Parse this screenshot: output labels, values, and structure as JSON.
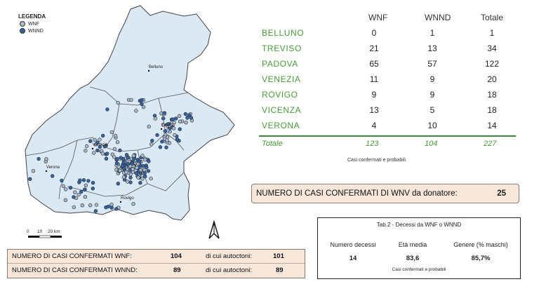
{
  "legend": {
    "title": "LEGENDA",
    "items": [
      {
        "label": "WNF",
        "color": "#a9b8cf"
      },
      {
        "label": "WNND",
        "color": "#2f64a6"
      }
    ]
  },
  "map": {
    "region_fill": "#dbe9f5",
    "cities": [
      "Belluno",
      "Treviso",
      "Venezia",
      "Verona",
      "Rovigo"
    ],
    "scale": {
      "zero": "0",
      "ten": "10",
      "twenty": "20 km"
    }
  },
  "table": {
    "headers": [
      "WNF",
      "WNND",
      "Totale"
    ],
    "rows": [
      {
        "prov": "BELLUNO",
        "wnf": "0",
        "wnnd": "1",
        "tot": "1"
      },
      {
        "prov": "TREVISO",
        "wnf": "21",
        "wnnd": "13",
        "tot": "34"
      },
      {
        "prov": "PADOVA",
        "wnf": "65",
        "wnnd": "57",
        "tot": "122"
      },
      {
        "prov": "VENEZIA",
        "wnf": "11",
        "wnnd": "9",
        "tot": "20"
      },
      {
        "prov": "ROVIGO",
        "wnf": "9",
        "wnnd": "9",
        "tot": "18"
      },
      {
        "prov": "VICENZA",
        "wnf": "13",
        "wnnd": "5",
        "tot": "18"
      },
      {
        "prov": "VERONA",
        "wnf": "4",
        "wnnd": "10",
        "tot": "14"
      }
    ],
    "total": {
      "label": "Totale",
      "wnf": "123",
      "wnnd": "104",
      "tot": "227"
    },
    "note": "Casi confermati e probabili",
    "accent": "#4b9a3a"
  },
  "donor": {
    "label": "NUMERO DI CASI CONFERMATI DI WNV da donatore:",
    "value": "25"
  },
  "deaths": {
    "title": "Tab.2 - Decessi da WNF o WNND",
    "col1_label": "Numero decessi",
    "col1_value": "14",
    "col2_label": "Età media",
    "col2_value": "83,6",
    "col3_label": "Genere (% maschi)",
    "col3_value": "85,7%",
    "note": "Casi confermati e probabili"
  },
  "cases": {
    "row1_label": "NUMERO DI CASI CONFERMATI WNF:",
    "row1_value": "104",
    "row1_auto_label": "di cui autoctoni:",
    "row1_auto_value": "101",
    "row2_label": "NUMERO DI CASI CONFERMATI WNND:",
    "row2_value": "89",
    "row2_auto_label": "di cui autoctoni:",
    "row2_auto_value": "89"
  }
}
